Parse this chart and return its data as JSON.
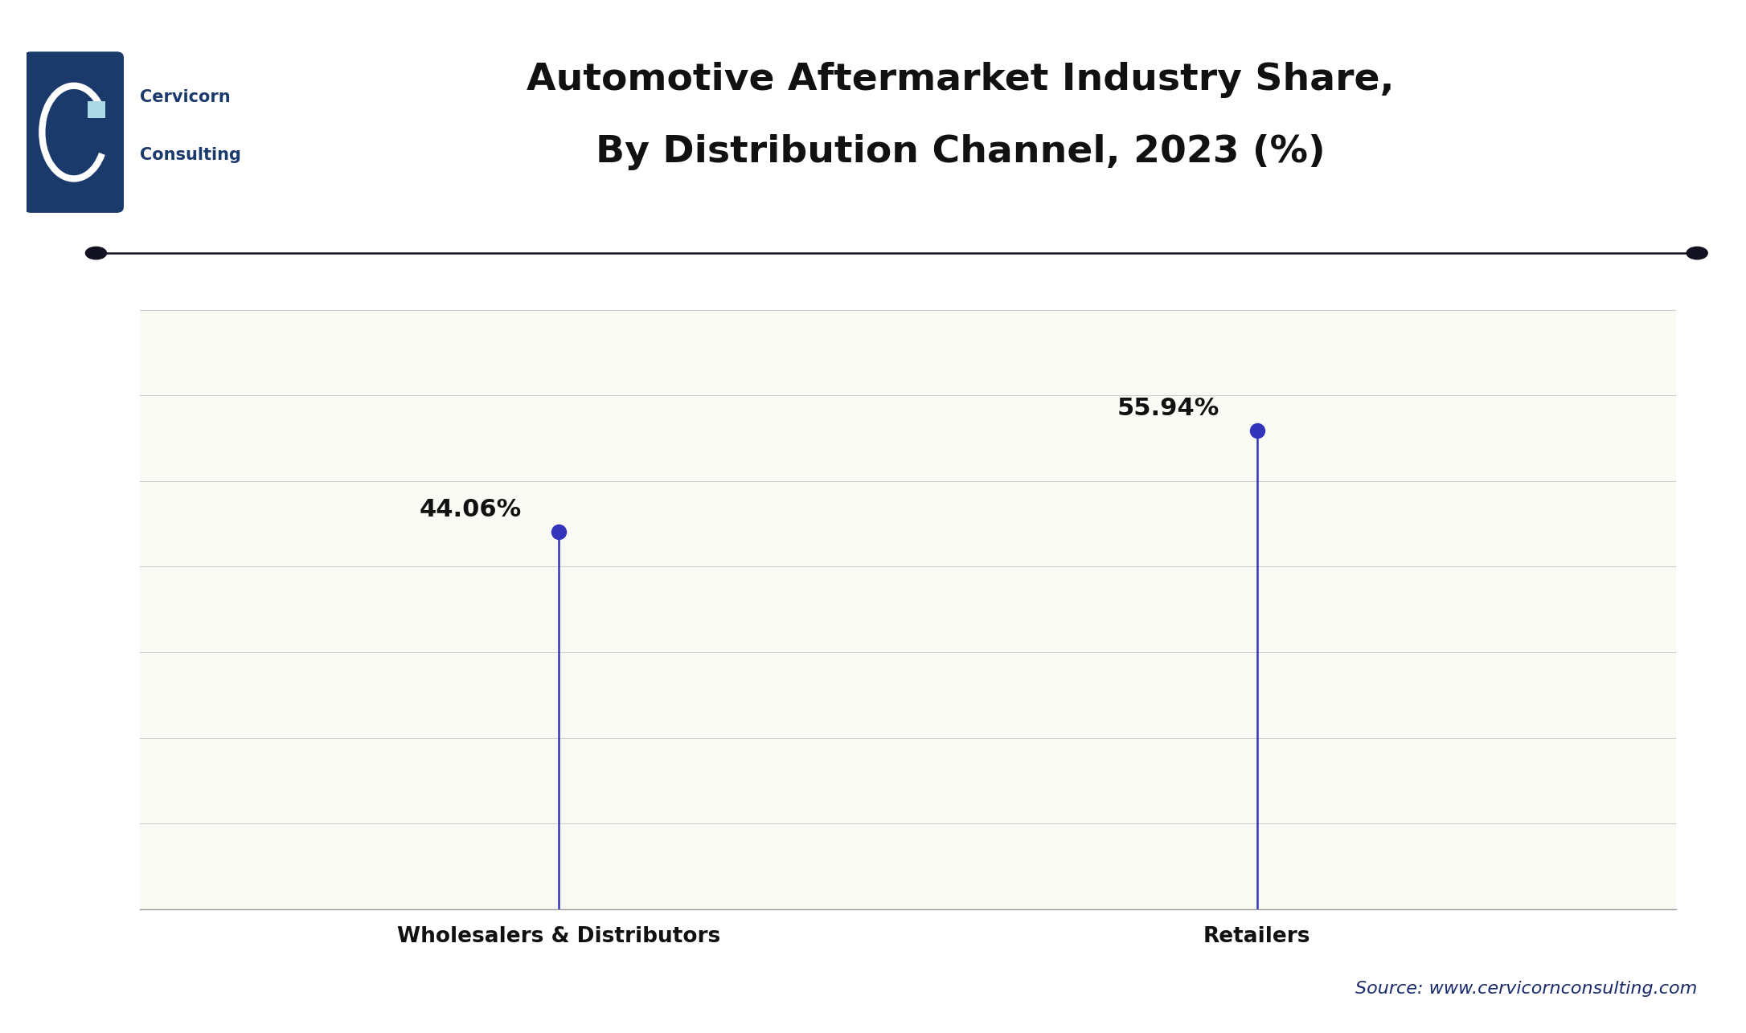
{
  "title_line1": "Automotive Aftermarket Industry Share,",
  "title_line2": "By Distribution Channel, 2023 (%)",
  "categories": [
    "Wholesalers & Distributors",
    "Retailers"
  ],
  "values": [
    44.06,
    55.94
  ],
  "labels": [
    "44.06%",
    "55.94%"
  ],
  "line_color": "#3333bb",
  "dot_color": "#3333bb",
  "background_color": "#ffffff",
  "plot_bg_color": "#fafaf5",
  "title_color": "#111111",
  "label_color": "#111111",
  "source_text": "Source: www.cervicornconsulting.com",
  "source_color": "#1a2a6c",
  "ylim": [
    0,
    70
  ],
  "yticks": [
    0,
    10,
    20,
    30,
    40,
    50,
    60,
    70
  ],
  "grid_color": "#cccccc",
  "separator_line_color": "#111122",
  "logo_box_color": "#1a3a6c",
  "title_fontsize": 34,
  "label_fontsize": 22,
  "category_fontsize": 19,
  "source_fontsize": 16
}
